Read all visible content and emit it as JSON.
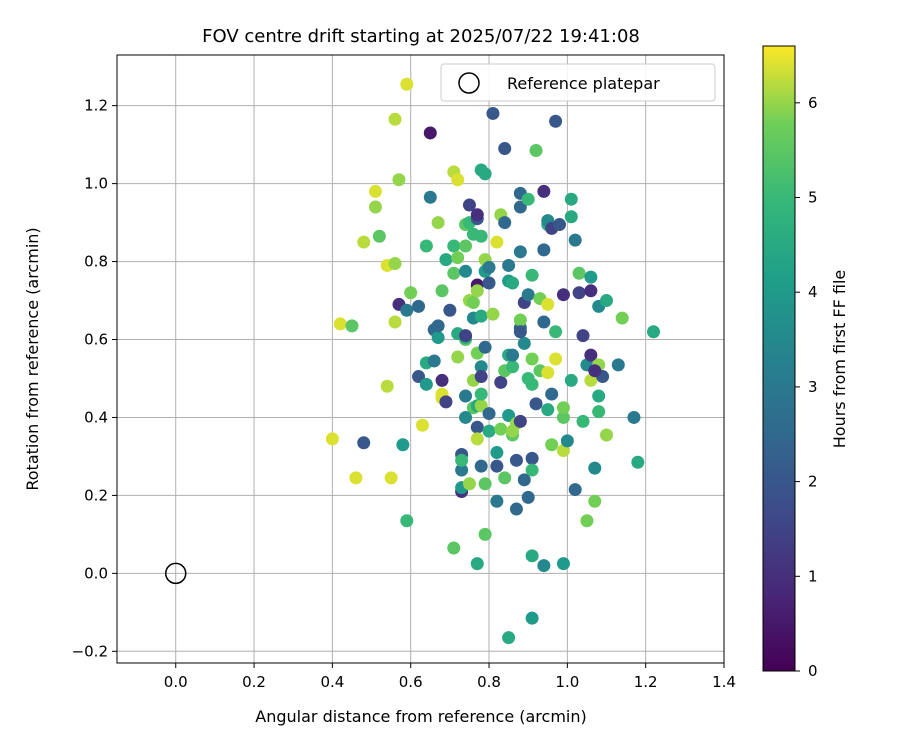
{
  "chart_data": {
    "type": "scatter",
    "title": "FOV centre drift starting at 2025/07/22 19:41:08",
    "xlabel": "Angular distance from reference (arcmin)",
    "ylabel": "Rotation from reference (arcmin)",
    "xlim": [
      -0.15,
      1.4
    ],
    "ylim": [
      -0.23,
      1.33
    ],
    "xticks": [
      "0.0",
      "0.2",
      "0.4",
      "0.6",
      "0.8",
      "1.0",
      "1.2",
      "1.4"
    ],
    "yticks": [
      "−0.2",
      "0.0",
      "0.2",
      "0.4",
      "0.6",
      "0.8",
      "1.0",
      "1.2"
    ],
    "grid": true,
    "legend": {
      "position": "top-right",
      "label": "Reference platepar"
    },
    "reference": {
      "x": 0.0,
      "y": 0.0
    },
    "colorbar": {
      "label": "Hours from first FF file",
      "min": 0,
      "max": 6.6,
      "ticks": [
        "0",
        "1",
        "2",
        "3",
        "4",
        "5",
        "6"
      ],
      "colormap": "viridis"
    },
    "points": [
      [
        0.4,
        0.345,
        6.4
      ],
      [
        0.42,
        0.64,
        6.4
      ],
      [
        0.45,
        0.635,
        5.5
      ],
      [
        0.46,
        0.245,
        6.4
      ],
      [
        0.48,
        0.85,
        6.2
      ],
      [
        0.48,
        0.335,
        2.0
      ],
      [
        0.51,
        0.94,
        6.0
      ],
      [
        0.51,
        0.98,
        6.4
      ],
      [
        0.52,
        0.865,
        5.5
      ],
      [
        0.54,
        0.79,
        6.4
      ],
      [
        0.54,
        0.48,
        6.2
      ],
      [
        0.55,
        0.245,
        6.4
      ],
      [
        0.56,
        1.165,
        6.2
      ],
      [
        0.56,
        0.645,
        6.2
      ],
      [
        0.56,
        0.795,
        6.0
      ],
      [
        0.57,
        1.01,
        6.0
      ],
      [
        0.57,
        0.69,
        1.0
      ],
      [
        0.58,
        0.33,
        4.0
      ],
      [
        0.59,
        1.255,
        6.4
      ],
      [
        0.59,
        0.135,
        5.0
      ],
      [
        0.59,
        0.675,
        3.0
      ],
      [
        0.6,
        0.72,
        5.8
      ],
      [
        0.62,
        0.505,
        2.0
      ],
      [
        0.62,
        0.685,
        2.5
      ],
      [
        0.63,
        0.38,
        6.4
      ],
      [
        0.64,
        0.84,
        5.0
      ],
      [
        0.64,
        0.54,
        4.5
      ],
      [
        0.64,
        0.485,
        4.0
      ],
      [
        0.65,
        0.965,
        3.0
      ],
      [
        0.65,
        1.13,
        0.5
      ],
      [
        0.66,
        0.625,
        2.5
      ],
      [
        0.66,
        0.545,
        3.0
      ],
      [
        0.67,
        0.9,
        6.0
      ],
      [
        0.67,
        0.605,
        4.0
      ],
      [
        0.67,
        0.635,
        2.5
      ],
      [
        0.68,
        0.725,
        5.5
      ],
      [
        0.68,
        0.46,
        6.4
      ],
      [
        0.68,
        0.495,
        1.0
      ],
      [
        0.68,
        0.45,
        6.4
      ],
      [
        0.69,
        0.805,
        4.5
      ],
      [
        0.69,
        0.44,
        1.5
      ],
      [
        0.7,
        0.675,
        2.0
      ],
      [
        0.71,
        0.065,
        5.5
      ],
      [
        0.71,
        0.77,
        5.5
      ],
      [
        0.71,
        0.84,
        5.0
      ],
      [
        0.71,
        1.03,
        6.2
      ],
      [
        0.72,
        0.615,
        4.5
      ],
      [
        0.72,
        0.555,
        6.0
      ],
      [
        0.72,
        0.81,
        5.8
      ],
      [
        0.72,
        1.01,
        6.4
      ],
      [
        0.73,
        0.305,
        2.0
      ],
      [
        0.73,
        0.265,
        3.0
      ],
      [
        0.73,
        0.21,
        1.0
      ],
      [
        0.73,
        0.22,
        4.0
      ],
      [
        0.73,
        0.29,
        5.0
      ],
      [
        0.74,
        0.84,
        5.5
      ],
      [
        0.74,
        0.775,
        3.5
      ],
      [
        0.74,
        0.895,
        5.5
      ],
      [
        0.74,
        0.6,
        5.5
      ],
      [
        0.74,
        0.455,
        3.0
      ],
      [
        0.74,
        0.605,
        4.5
      ],
      [
        0.74,
        0.61,
        1.5
      ],
      [
        0.75,
        0.9,
        5.0
      ],
      [
        0.75,
        0.945,
        1.5
      ],
      [
        0.75,
        0.7,
        6.0
      ],
      [
        0.75,
        0.23,
        6.0
      ],
      [
        0.76,
        0.695,
        5.8
      ],
      [
        0.76,
        0.87,
        5.0
      ],
      [
        0.76,
        0.495,
        6.0
      ],
      [
        0.76,
        0.425,
        5.5
      ],
      [
        0.76,
        0.655,
        3.5
      ],
      [
        0.77,
        0.025,
        4.5
      ],
      [
        0.77,
        0.375,
        2.0
      ],
      [
        0.77,
        0.43,
        4.5
      ],
      [
        0.77,
        0.345,
        6.2
      ],
      [
        0.77,
        0.74,
        0.5
      ],
      [
        0.77,
        0.725,
        6.0
      ],
      [
        0.77,
        0.91,
        2.0
      ],
      [
        0.77,
        0.92,
        1.0
      ],
      [
        0.77,
        0.565,
        5.8
      ],
      [
        0.78,
        0.43,
        6.0
      ],
      [
        0.78,
        0.275,
        2.5
      ],
      [
        0.78,
        0.53,
        3.5
      ],
      [
        0.78,
        0.46,
        5.0
      ],
      [
        0.78,
        0.505,
        1.5
      ],
      [
        0.78,
        0.66,
        4.5
      ],
      [
        0.78,
        0.865,
        5.0
      ],
      [
        0.78,
        1.035,
        4.5
      ],
      [
        0.79,
        0.1,
        5.5
      ],
      [
        0.79,
        0.23,
        5.5
      ],
      [
        0.79,
        0.805,
        6.0
      ],
      [
        0.79,
        0.58,
        2.5
      ],
      [
        0.79,
        1.025,
        4.5
      ],
      [
        0.79,
        0.775,
        4.0
      ],
      [
        0.8,
        0.745,
        2.0
      ],
      [
        0.8,
        0.785,
        3.0
      ],
      [
        0.8,
        0.41,
        2.5
      ],
      [
        0.8,
        0.365,
        4.5
      ],
      [
        0.81,
        1.18,
        2.0
      ],
      [
        0.81,
        0.665,
        6.0
      ],
      [
        0.82,
        0.185,
        3.0
      ],
      [
        0.82,
        0.275,
        2.0
      ],
      [
        0.82,
        0.31,
        4.0
      ],
      [
        0.82,
        0.85,
        6.4
      ],
      [
        0.83,
        0.92,
        6.0
      ],
      [
        0.83,
        0.49,
        1.5
      ],
      [
        0.83,
        0.37,
        5.8
      ],
      [
        0.84,
        1.09,
        2.0
      ],
      [
        0.84,
        0.9,
        2.5
      ],
      [
        0.84,
        0.245,
        5.5
      ],
      [
        0.84,
        0.52,
        5.5
      ],
      [
        0.85,
        0.75,
        4.0
      ],
      [
        0.85,
        0.79,
        3.0
      ],
      [
        0.85,
        0.405,
        4.0
      ],
      [
        0.85,
        -0.165,
        4.5
      ],
      [
        0.85,
        0.56,
        4.5
      ],
      [
        0.86,
        0.355,
        5.5
      ],
      [
        0.86,
        0.53,
        5.0
      ],
      [
        0.86,
        0.745,
        4.5
      ],
      [
        0.86,
        0.56,
        3.0
      ],
      [
        0.86,
        0.365,
        6.0
      ],
      [
        0.87,
        0.29,
        2.0
      ],
      [
        0.87,
        0.385,
        6.0
      ],
      [
        0.87,
        0.165,
        2.5
      ],
      [
        0.88,
        0.63,
        2.5
      ],
      [
        0.88,
        0.65,
        5.8
      ],
      [
        0.88,
        0.825,
        3.0
      ],
      [
        0.88,
        0.975,
        2.5
      ],
      [
        0.88,
        0.94,
        2.5
      ],
      [
        0.88,
        0.39,
        1.5
      ],
      [
        0.89,
        0.24,
        2.5
      ],
      [
        0.89,
        0.59,
        3.5
      ],
      [
        0.89,
        0.695,
        1.5
      ],
      [
        0.9,
        0.195,
        2.5
      ],
      [
        0.9,
        0.96,
        5.0
      ],
      [
        0.9,
        0.715,
        3.0
      ],
      [
        0.9,
        0.5,
        5.0
      ],
      [
        0.91,
        0.045,
        4.5
      ],
      [
        0.91,
        0.295,
        2.0
      ],
      [
        0.91,
        0.265,
        5.0
      ],
      [
        0.91,
        0.765,
        5.0
      ],
      [
        0.91,
        0.55,
        5.8
      ],
      [
        0.91,
        0.485,
        5.0
      ],
      [
        0.91,
        -0.115,
        4.0
      ],
      [
        0.92,
        1.085,
        5.5
      ],
      [
        0.92,
        0.435,
        2.0
      ],
      [
        0.93,
        0.705,
        5.8
      ],
      [
        0.93,
        0.52,
        5.5
      ],
      [
        0.94,
        0.98,
        1.0
      ],
      [
        0.94,
        0.83,
        2.5
      ],
      [
        0.94,
        0.02,
        3.5
      ],
      [
        0.94,
        0.645,
        2.5
      ],
      [
        0.95,
        0.895,
        4.5
      ],
      [
        0.95,
        0.42,
        4.5
      ],
      [
        0.95,
        0.69,
        6.4
      ],
      [
        0.95,
        0.905,
        3.5
      ],
      [
        0.95,
        0.515,
        6.4
      ],
      [
        0.96,
        0.885,
        1.5
      ],
      [
        0.96,
        0.33,
        5.8
      ],
      [
        0.96,
        0.46,
        2.5
      ],
      [
        0.97,
        0.62,
        5.0
      ],
      [
        0.97,
        1.16,
        2.0
      ],
      [
        0.97,
        0.55,
        6.4
      ],
      [
        0.98,
        0.895,
        2.0
      ],
      [
        0.99,
        0.715,
        1.0
      ],
      [
        0.99,
        0.4,
        5.5
      ],
      [
        0.99,
        0.425,
        5.8
      ],
      [
        0.99,
        0.315,
        6.2
      ],
      [
        1.0,
        0.34,
        3.5
      ],
      [
        0.99,
        0.025,
        4.0
      ],
      [
        1.01,
        0.96,
        4.5
      ],
      [
        1.01,
        0.915,
        4.5
      ],
      [
        1.01,
        0.495,
        4.5
      ],
      [
        1.02,
        0.215,
        2.5
      ],
      [
        1.02,
        0.855,
        3.0
      ],
      [
        1.03,
        0.77,
        5.5
      ],
      [
        1.03,
        0.72,
        1.5
      ],
      [
        1.04,
        0.61,
        1.5
      ],
      [
        1.04,
        0.39,
        5.0
      ],
      [
        1.05,
        0.135,
        5.8
      ],
      [
        1.05,
        0.535,
        3.5
      ],
      [
        1.06,
        0.56,
        1.0
      ],
      [
        1.06,
        0.725,
        1.0
      ],
      [
        1.06,
        0.76,
        4.0
      ],
      [
        1.06,
        0.495,
        6.2
      ],
      [
        1.07,
        0.185,
        5.8
      ],
      [
        1.07,
        0.27,
        3.5
      ],
      [
        1.08,
        0.415,
        5.0
      ],
      [
        1.08,
        0.455,
        4.5
      ],
      [
        1.08,
        0.685,
        3.5
      ],
      [
        1.08,
        0.535,
        6.0
      ],
      [
        1.09,
        0.505,
        2.0
      ],
      [
        1.1,
        0.7,
        4.5
      ],
      [
        1.1,
        0.355,
        6.0
      ],
      [
        1.13,
        0.535,
        3.0
      ],
      [
        1.14,
        0.655,
        5.8
      ],
      [
        1.17,
        0.4,
        3.0
      ],
      [
        1.18,
        0.285,
        4.5
      ],
      [
        1.22,
        0.62,
        4.5
      ],
      [
        1.07,
        0.52,
        1.0
      ],
      [
        0.88,
        0.62,
        2.0
      ],
      [
        0.74,
        0.4,
        3.5
      ]
    ]
  }
}
